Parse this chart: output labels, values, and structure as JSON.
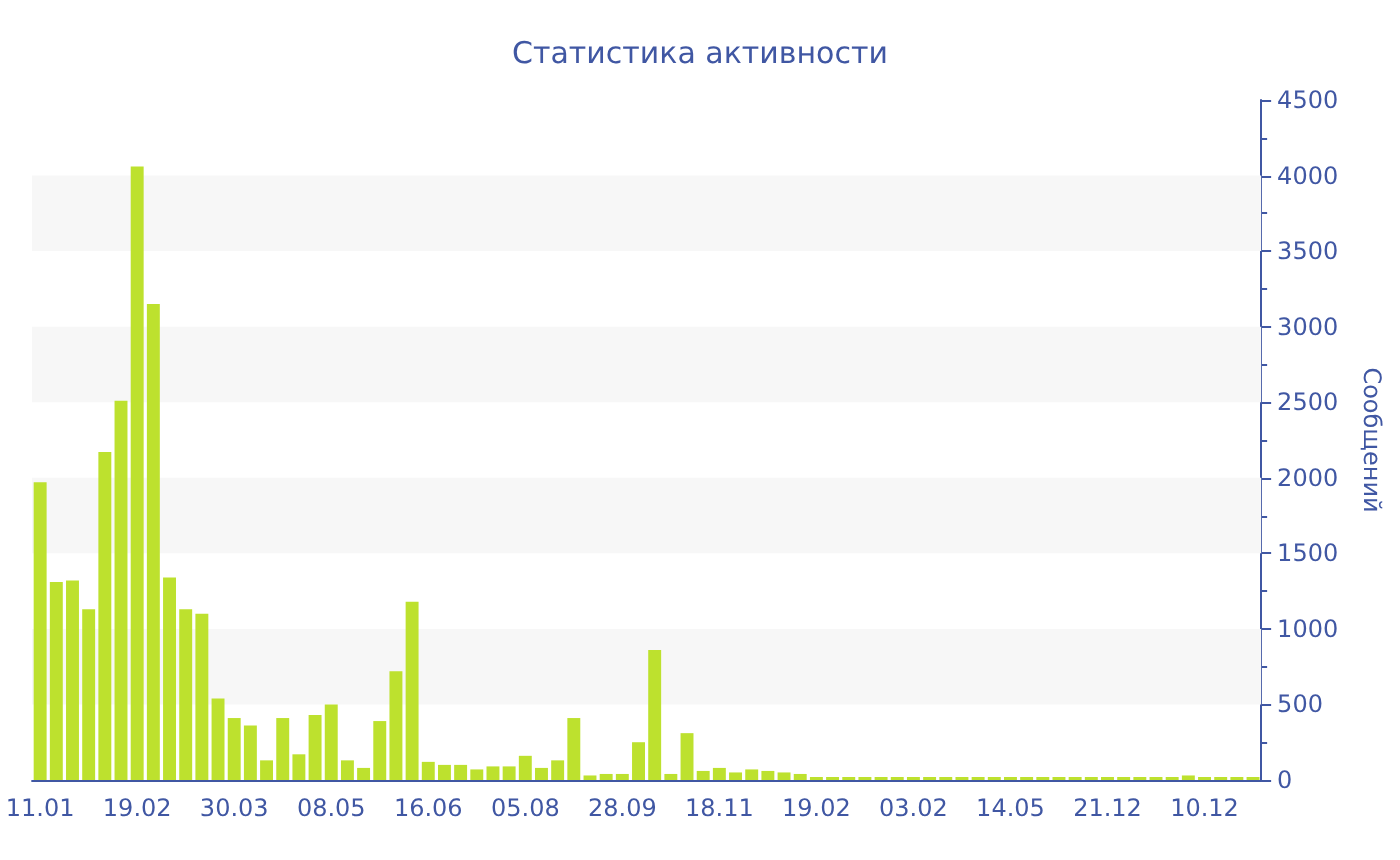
{
  "chart_data": {
    "type": "bar",
    "title": "Статистика активности",
    "ylabel": "Сообщений",
    "categories": [
      "11.01",
      null,
      null,
      null,
      null,
      null,
      "19.02",
      null,
      null,
      null,
      null,
      null,
      "30.03",
      null,
      null,
      null,
      null,
      null,
      "08.05",
      null,
      null,
      null,
      null,
      null,
      "16.06",
      null,
      null,
      null,
      null,
      null,
      "05.08",
      null,
      null,
      null,
      null,
      null,
      "28.09",
      null,
      null,
      null,
      null,
      null,
      "18.11",
      null,
      null,
      null,
      null,
      null,
      "19.02",
      null,
      null,
      null,
      null,
      null,
      "03.02",
      null,
      null,
      null,
      null,
      null,
      "14.05",
      null,
      null,
      null,
      null,
      null,
      "21.12",
      null,
      null,
      null,
      null,
      null,
      "10.12",
      null,
      null,
      null
    ],
    "values": [
      1970,
      1310,
      1320,
      1130,
      2170,
      2510,
      4060,
      3150,
      1340,
      1130,
      1100,
      540,
      410,
      360,
      130,
      410,
      170,
      430,
      500,
      130,
      80,
      390,
      720,
      1180,
      120,
      100,
      100,
      70,
      90,
      90,
      160,
      80,
      130,
      410,
      30,
      40,
      40,
      250,
      860,
      40,
      310,
      60,
      80,
      50,
      70,
      60,
      50,
      40,
      20,
      20,
      20,
      20,
      20,
      20,
      20,
      20,
      20,
      20,
      20,
      20,
      20,
      20,
      20,
      20,
      20,
      20,
      20,
      20,
      20,
      20,
      20,
      30,
      20,
      20,
      20,
      20
    ],
    "color": "#bde12e",
    "ylim": [
      0,
      4500
    ],
    "yticks": [
      0,
      500,
      1000,
      1500,
      2000,
      2500,
      3000,
      3500,
      4000,
      4500
    ],
    "bands": [
      {
        "axis": "y",
        "from": 500,
        "to": 1000,
        "color": "#f7f7f7"
      },
      {
        "axis": "y",
        "from": 1500,
        "to": 2000,
        "color": "#f7f7f7"
      },
      {
        "axis": "y",
        "from": 2500,
        "to": 3000,
        "color": "#f7f7f7"
      },
      {
        "axis": "y",
        "from": 3500,
        "to": 4000,
        "color": "#f7f7f7"
      }
    ]
  }
}
